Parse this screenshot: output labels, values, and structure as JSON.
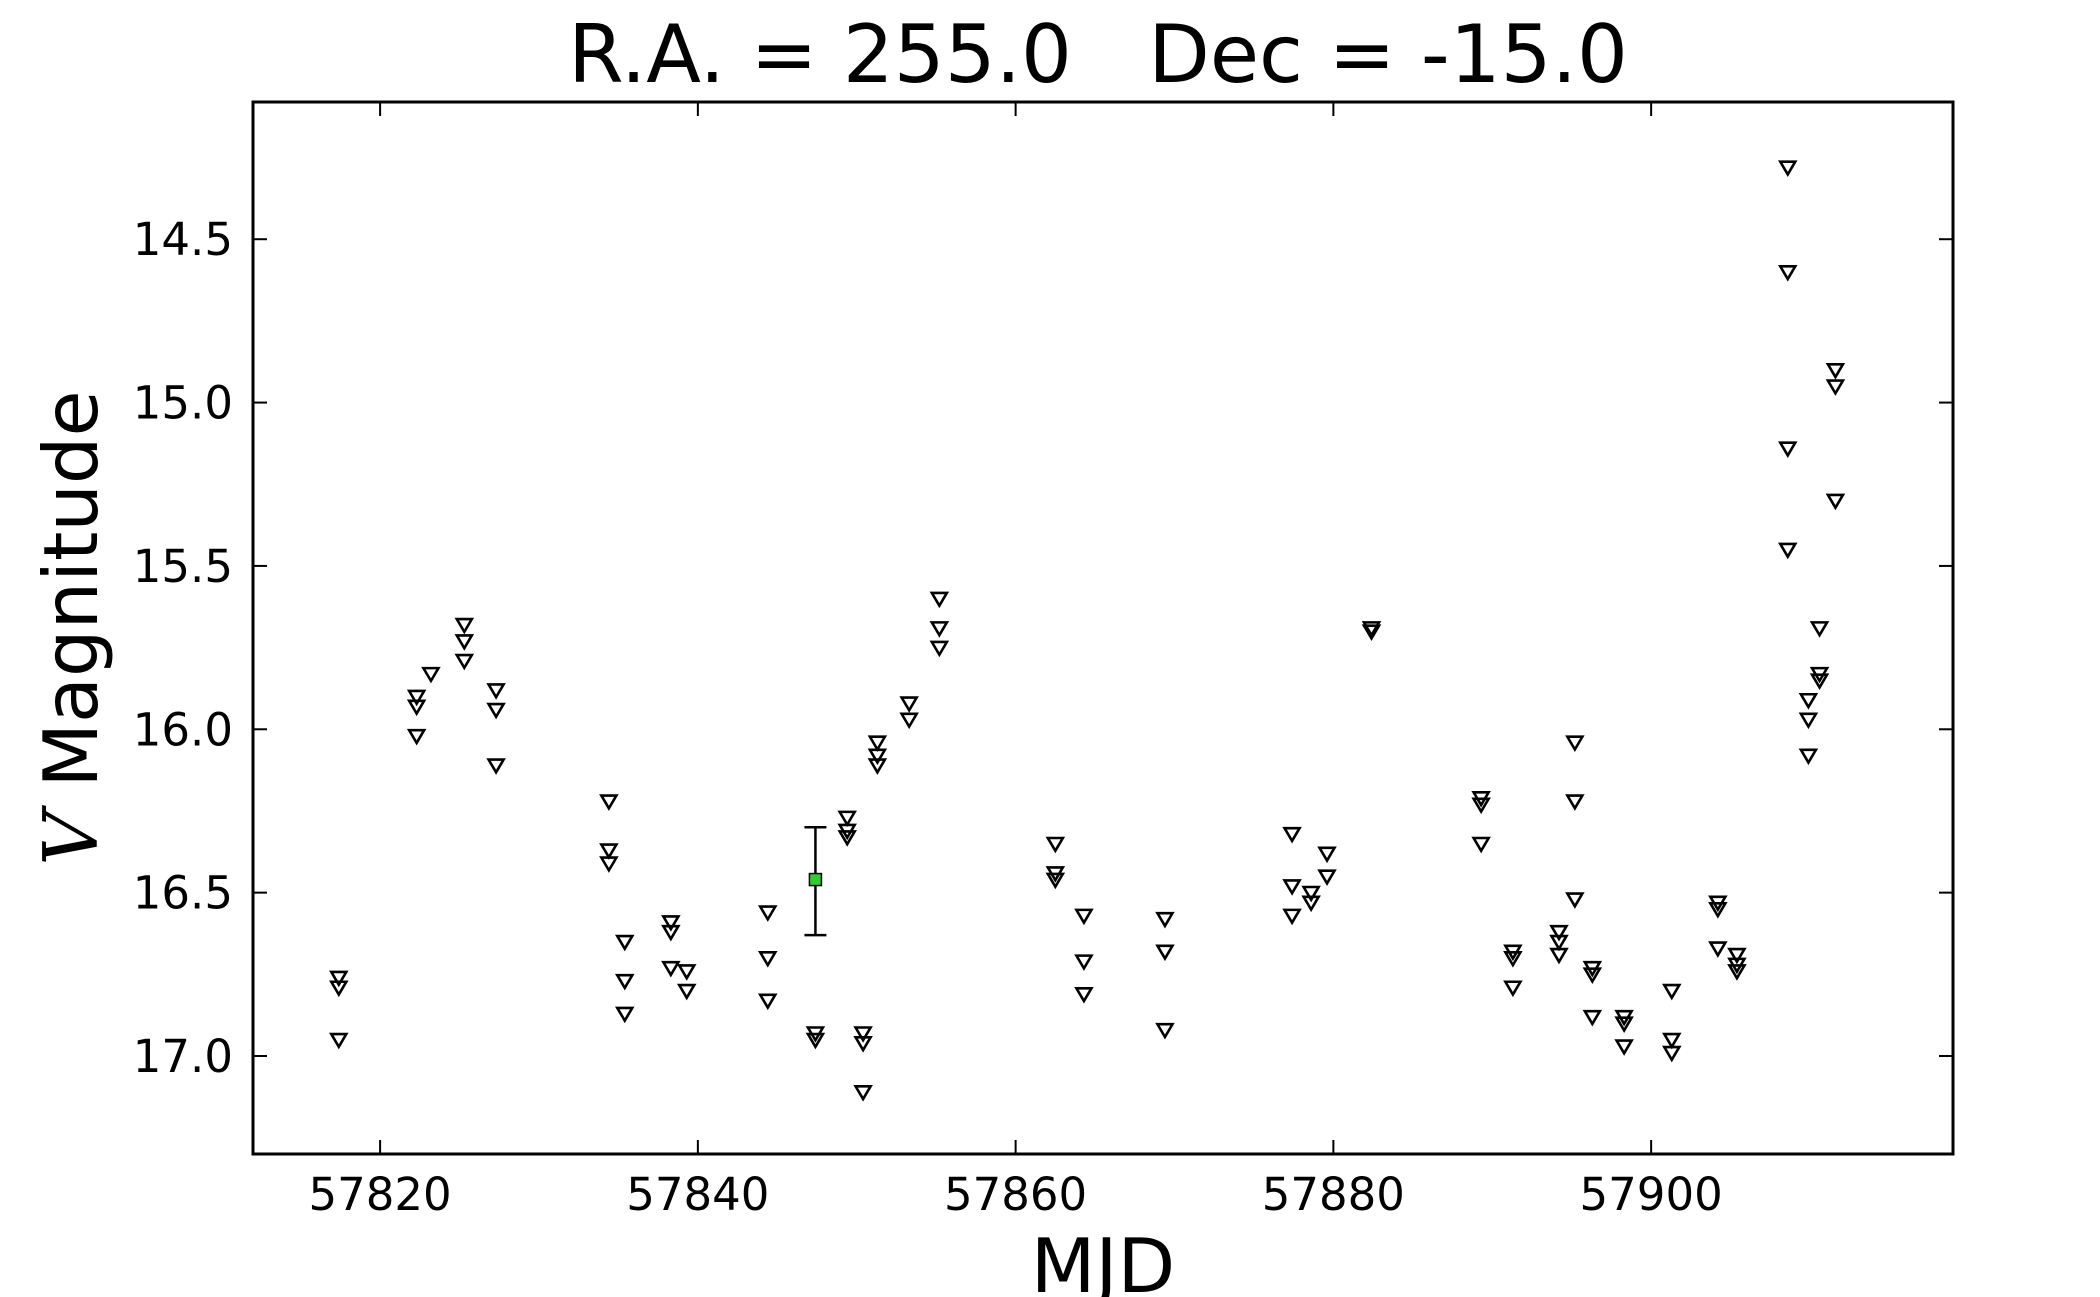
{
  "chart_data": {
    "type": "scatter",
    "title": "R.A. = 255.0   Dec = -15.0",
    "xlabel": "MJD",
    "ylabel_var": "V",
    "ylabel_rest": " Magnitude",
    "xlim": [
      57812,
      57919
    ],
    "ylim": [
      17.3,
      14.08
    ],
    "y_inverted": true,
    "xticks": [
      57820,
      57840,
      57860,
      57880,
      57900
    ],
    "yticks": [
      14.5,
      15.0,
      15.5,
      16.0,
      16.5,
      17.0
    ],
    "ytick_labels": [
      "14.5",
      "15.0",
      "15.5",
      "16.0",
      "16.5",
      "17.0"
    ],
    "grid": false,
    "upper_limit_color": "#000000",
    "detection_color": "#33cc33",
    "series": [
      {
        "marker": "open-down-triangle",
        "points": [
          [
            57817.4,
            16.76
          ],
          [
            57817.4,
            16.79
          ],
          [
            57817.4,
            16.95
          ],
          [
            57822.3,
            15.9
          ],
          [
            57822.3,
            15.93
          ],
          [
            57822.3,
            16.02
          ],
          [
            57823.2,
            15.83
          ],
          [
            57825.3,
            15.68
          ],
          [
            57825.3,
            15.73
          ],
          [
            57825.3,
            15.79
          ],
          [
            57827.3,
            15.88
          ],
          [
            57827.3,
            15.94
          ],
          [
            57827.3,
            16.11
          ],
          [
            57834.4,
            16.22
          ],
          [
            57834.4,
            16.37
          ],
          [
            57834.4,
            16.41
          ],
          [
            57835.4,
            16.65
          ],
          [
            57835.4,
            16.77
          ],
          [
            57835.4,
            16.87
          ],
          [
            57838.3,
            16.59
          ],
          [
            57838.3,
            16.62
          ],
          [
            57838.3,
            16.73
          ],
          [
            57839.3,
            16.74
          ],
          [
            57839.3,
            16.8
          ],
          [
            57844.4,
            16.56
          ],
          [
            57844.4,
            16.7
          ],
          [
            57844.4,
            16.83
          ],
          [
            57847.4,
            16.93
          ],
          [
            57847.4,
            16.95
          ],
          [
            57849.4,
            16.27
          ],
          [
            57849.4,
            16.31
          ],
          [
            57849.4,
            16.33
          ],
          [
            57850.4,
            16.93
          ],
          [
            57850.4,
            16.96
          ],
          [
            57850.4,
            17.11
          ],
          [
            57851.3,
            16.04
          ],
          [
            57851.3,
            16.08
          ],
          [
            57851.3,
            16.11
          ],
          [
            57853.3,
            15.92
          ],
          [
            57853.3,
            15.97
          ],
          [
            57855.2,
            15.6
          ],
          [
            57855.2,
            15.69
          ],
          [
            57855.2,
            15.75
          ],
          [
            57862.5,
            16.35
          ],
          [
            57862.5,
            16.44
          ],
          [
            57862.5,
            16.46
          ],
          [
            57864.3,
            16.57
          ],
          [
            57864.3,
            16.71
          ],
          [
            57864.3,
            16.81
          ],
          [
            57869.4,
            16.58
          ],
          [
            57869.4,
            16.68
          ],
          [
            57869.4,
            16.92
          ],
          [
            57877.4,
            16.32
          ],
          [
            57877.4,
            16.48
          ],
          [
            57877.4,
            16.57
          ],
          [
            57878.6,
            16.5
          ],
          [
            57878.6,
            16.53
          ],
          [
            57879.6,
            16.38
          ],
          [
            57879.6,
            16.45
          ],
          [
            57882.4,
            15.69
          ],
          [
            57882.4,
            15.7
          ],
          [
            57889.3,
            16.21
          ],
          [
            57889.3,
            16.23
          ],
          [
            57889.3,
            16.35
          ],
          [
            57891.3,
            16.68
          ],
          [
            57891.3,
            16.7
          ],
          [
            57891.3,
            16.79
          ],
          [
            57894.2,
            16.62
          ],
          [
            57894.2,
            16.65
          ],
          [
            57894.2,
            16.69
          ],
          [
            57895.2,
            16.04
          ],
          [
            57895.2,
            16.22
          ],
          [
            57895.2,
            16.52
          ],
          [
            57896.3,
            16.73
          ],
          [
            57896.3,
            16.75
          ],
          [
            57896.3,
            16.88
          ],
          [
            57898.3,
            16.88
          ],
          [
            57898.3,
            16.9
          ],
          [
            57898.3,
            16.97
          ],
          [
            57901.3,
            16.8
          ],
          [
            57901.3,
            16.95
          ],
          [
            57901.3,
            16.99
          ],
          [
            57904.2,
            16.53
          ],
          [
            57904.2,
            16.55
          ],
          [
            57904.2,
            16.67
          ],
          [
            57905.4,
            16.69
          ],
          [
            57905.4,
            16.72
          ],
          [
            57905.4,
            16.74
          ],
          [
            57908.6,
            14.28
          ],
          [
            57908.6,
            14.6
          ],
          [
            57908.6,
            15.14
          ],
          [
            57908.6,
            15.45
          ],
          [
            57909.9,
            15.91
          ],
          [
            57909.9,
            15.97
          ],
          [
            57909.9,
            16.08
          ],
          [
            57910.6,
            15.69
          ],
          [
            57910.6,
            15.83
          ],
          [
            57910.6,
            15.85
          ],
          [
            57911.6,
            14.9
          ],
          [
            57911.6,
            14.95
          ],
          [
            57911.6,
            15.3
          ]
        ]
      },
      {
        "marker": "filled-square",
        "points": [
          {
            "x": 57847.4,
            "y": 16.46,
            "yerr_low": 16.3,
            "yerr_high": 16.63
          }
        ]
      }
    ]
  }
}
